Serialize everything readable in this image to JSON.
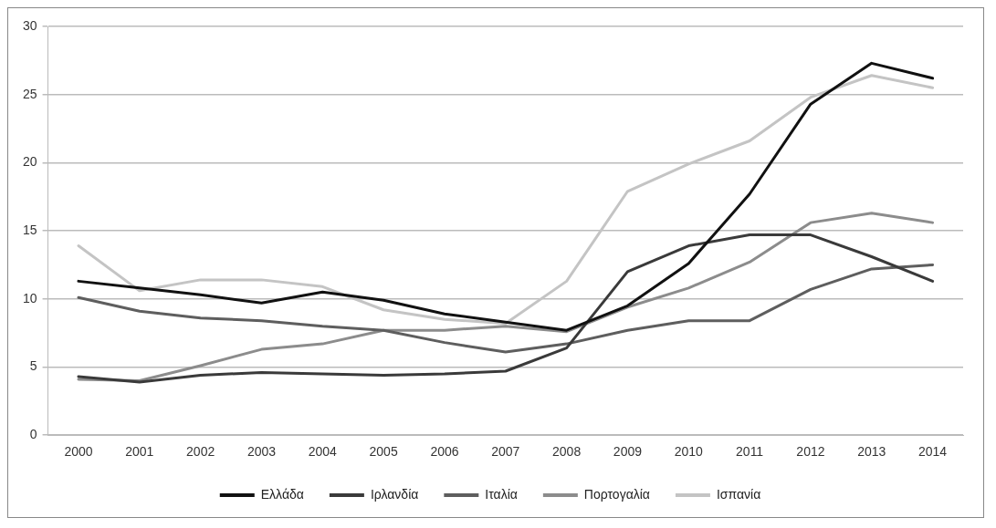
{
  "chart_data": {
    "type": "line",
    "categories": [
      "2000",
      "2001",
      "2002",
      "2003",
      "2004",
      "2005",
      "2006",
      "2007",
      "2008",
      "2009",
      "2010",
      "2011",
      "2012",
      "2013",
      "2014"
    ],
    "series": [
      {
        "name": "Ελλάδα",
        "color": "#111111",
        "values": [
          11.3,
          10.8,
          10.3,
          9.7,
          10.5,
          9.9,
          8.9,
          8.3,
          7.7,
          9.5,
          12.6,
          17.7,
          24.3,
          27.3,
          26.2
        ]
      },
      {
        "name": "Ιρλανδία",
        "color": "#3a3a3a",
        "values": [
          4.3,
          3.9,
          4.4,
          4.6,
          4.5,
          4.4,
          4.5,
          4.7,
          6.4,
          12.0,
          13.9,
          14.7,
          14.7,
          13.1,
          11.3
        ]
      },
      {
        "name": "Ιταλία",
        "color": "#5e5e5e",
        "values": [
          10.1,
          9.1,
          8.6,
          8.4,
          8.0,
          7.7,
          6.8,
          6.1,
          6.7,
          7.7,
          8.4,
          8.4,
          10.7,
          12.2,
          12.5
        ]
      },
      {
        "name": "Πορτογαλία",
        "color": "#8c8c8c",
        "values": [
          4.1,
          4.0,
          5.1,
          6.3,
          6.7,
          7.7,
          7.7,
          8.0,
          7.6,
          9.4,
          10.8,
          12.7,
          15.6,
          16.3,
          15.6
        ]
      },
      {
        "name": "Ισπανία",
        "color": "#c4c4c4",
        "values": [
          13.9,
          10.6,
          11.4,
          11.4,
          10.9,
          9.2,
          8.5,
          8.2,
          11.3,
          17.9,
          19.9,
          21.6,
          24.8,
          26.4,
          25.5
        ]
      }
    ],
    "ylim": [
      0,
      30
    ],
    "yticks": [
      0,
      5,
      10,
      15,
      20,
      25,
      30
    ],
    "grid": "y",
    "legend": "bottom",
    "marker": "none",
    "line_style": "solid"
  }
}
